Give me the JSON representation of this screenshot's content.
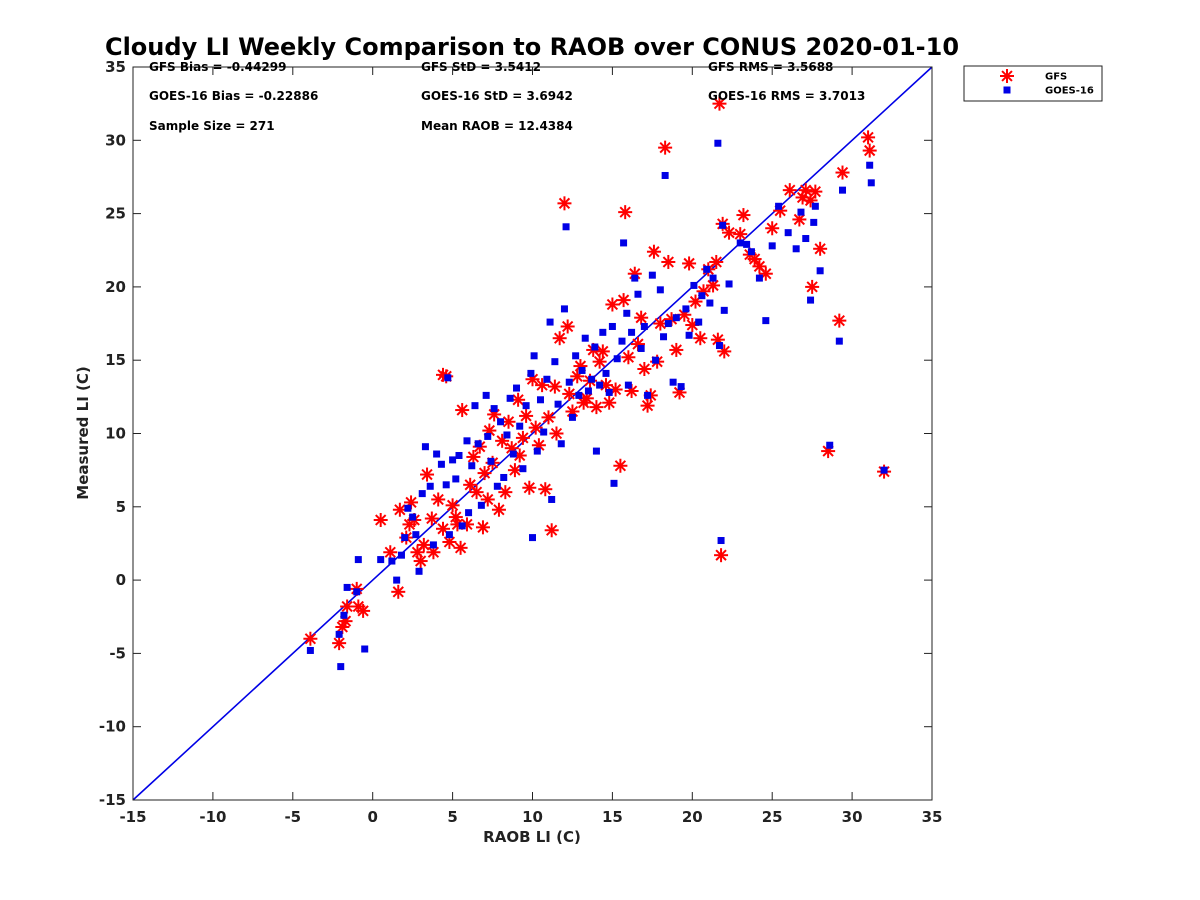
{
  "chart_data": {
    "type": "scatter",
    "title": "Cloudy LI Weekly Comparison to RAOB over CONUS 2020-01-10",
    "xlabel": "RAOB LI (C)",
    "ylabel": "Measured LI (C)",
    "xlim": [
      -15,
      35
    ],
    "ylim": [
      -15,
      35
    ],
    "xticks": [
      "-15",
      "-10",
      "-5",
      "0",
      "5",
      "10",
      "15",
      "20",
      "25",
      "30",
      "35"
    ],
    "yticks": [
      "-15",
      "-10",
      "-5",
      "0",
      "5",
      "10",
      "15",
      "20",
      "25",
      "30",
      "35"
    ],
    "grid": false,
    "legend_position": "outside-top-right",
    "reference_line": {
      "from": [
        -15,
        -15
      ],
      "to": [
        35,
        35
      ],
      "color": "#0000e6"
    },
    "stats": [
      [
        "GFS Bias = -0.44299",
        "GFS StD = 3.5412",
        "GFS RMS = 3.5688"
      ],
      [
        "GOES-16 Bias = -0.22886",
        "GOES-16 StD = 3.6942",
        "GOES-16 RMS = 3.7013"
      ],
      [
        "Sample Size = 271",
        "Mean RAOB = 12.4384",
        ""
      ]
    ],
    "series": [
      {
        "name": "GFS",
        "marker": "asterisk",
        "color": "#ff0000",
        "points": [
          [
            -3.9,
            -4.0
          ],
          [
            -2.1,
            -4.3
          ],
          [
            -1.9,
            -3.2
          ],
          [
            -1.7,
            -2.8
          ],
          [
            -1.6,
            -1.8
          ],
          [
            -1.0,
            -0.6
          ],
          [
            -0.9,
            -1.8
          ],
          [
            -0.6,
            -2.1
          ],
          [
            0.5,
            4.1
          ],
          [
            1.1,
            1.9
          ],
          [
            1.6,
            -0.8
          ],
          [
            1.7,
            4.8
          ],
          [
            2.1,
            2.9
          ],
          [
            2.3,
            3.8
          ],
          [
            2.4,
            5.3
          ],
          [
            2.6,
            4.1
          ],
          [
            2.8,
            1.9
          ],
          [
            3.0,
            1.3
          ],
          [
            3.2,
            2.4
          ],
          [
            3.4,
            7.2
          ],
          [
            3.7,
            4.2
          ],
          [
            3.8,
            1.9
          ],
          [
            4.1,
            5.5
          ],
          [
            4.4,
            3.5
          ],
          [
            4.4,
            14.0
          ],
          [
            4.6,
            13.9
          ],
          [
            4.8,
            2.6
          ],
          [
            5.0,
            5.1
          ],
          [
            5.2,
            4.3
          ],
          [
            5.3,
            3.8
          ],
          [
            5.5,
            2.2
          ],
          [
            5.6,
            11.6
          ],
          [
            5.9,
            3.8
          ],
          [
            6.1,
            6.5
          ],
          [
            6.3,
            8.4
          ],
          [
            6.5,
            6.0
          ],
          [
            6.7,
            9.1
          ],
          [
            6.9,
            3.6
          ],
          [
            7.0,
            7.3
          ],
          [
            7.2,
            5.5
          ],
          [
            7.3,
            10.2
          ],
          [
            7.5,
            8.0
          ],
          [
            7.6,
            11.3
          ],
          [
            7.9,
            4.8
          ],
          [
            8.1,
            9.5
          ],
          [
            8.3,
            6.0
          ],
          [
            8.5,
            10.8
          ],
          [
            8.7,
            9.0
          ],
          [
            8.9,
            7.5
          ],
          [
            9.1,
            12.3
          ],
          [
            9.2,
            8.5
          ],
          [
            9.4,
            9.7
          ],
          [
            9.6,
            11.2
          ],
          [
            9.8,
            6.3
          ],
          [
            10.0,
            13.7
          ],
          [
            10.2,
            10.4
          ],
          [
            10.4,
            9.2
          ],
          [
            10.6,
            13.3
          ],
          [
            10.8,
            6.2
          ],
          [
            11.0,
            11.1
          ],
          [
            11.2,
            3.4
          ],
          [
            11.4,
            13.2
          ],
          [
            11.5,
            10.0
          ],
          [
            11.7,
            16.5
          ],
          [
            12.0,
            25.7
          ],
          [
            12.2,
            17.3
          ],
          [
            12.3,
            12.7
          ],
          [
            12.5,
            11.5
          ],
          [
            12.8,
            13.9
          ],
          [
            13.0,
            14.6
          ],
          [
            13.2,
            12.1
          ],
          [
            13.4,
            12.4
          ],
          [
            13.6,
            13.6
          ],
          [
            13.8,
            15.7
          ],
          [
            14.0,
            11.8
          ],
          [
            14.2,
            14.9
          ],
          [
            14.4,
            15.6
          ],
          [
            14.6,
            13.3
          ],
          [
            14.8,
            12.1
          ],
          [
            15.0,
            18.8
          ],
          [
            15.2,
            13.0
          ],
          [
            15.5,
            7.8
          ],
          [
            15.7,
            19.1
          ],
          [
            15.8,
            25.1
          ],
          [
            16.0,
            15.2
          ],
          [
            16.2,
            12.9
          ],
          [
            16.4,
            20.9
          ],
          [
            16.6,
            16.1
          ],
          [
            16.8,
            17.9
          ],
          [
            17.0,
            14.4
          ],
          [
            17.2,
            11.9
          ],
          [
            17.4,
            12.6
          ],
          [
            17.6,
            22.4
          ],
          [
            17.8,
            14.9
          ],
          [
            18.0,
            17.5
          ],
          [
            18.3,
            29.5
          ],
          [
            18.5,
            21.7
          ],
          [
            18.7,
            17.8
          ],
          [
            19.0,
            15.7
          ],
          [
            19.2,
            12.8
          ],
          [
            19.5,
            18.1
          ],
          [
            19.8,
            21.6
          ],
          [
            20.0,
            17.4
          ],
          [
            20.2,
            19.0
          ],
          [
            20.5,
            16.5
          ],
          [
            20.7,
            19.7
          ],
          [
            21.0,
            21.2
          ],
          [
            21.3,
            20.1
          ],
          [
            21.5,
            21.7
          ],
          [
            21.6,
            16.4
          ],
          [
            21.7,
            32.5
          ],
          [
            21.8,
            1.7
          ],
          [
            21.9,
            24.3
          ],
          [
            22.0,
            15.6
          ],
          [
            22.3,
            23.7
          ],
          [
            23.0,
            23.6
          ],
          [
            23.2,
            24.9
          ],
          [
            23.6,
            22.2
          ],
          [
            23.9,
            21.9
          ],
          [
            24.2,
            21.4
          ],
          [
            24.6,
            20.9
          ],
          [
            25.0,
            24.0
          ],
          [
            25.5,
            25.2
          ],
          [
            26.1,
            26.6
          ],
          [
            26.7,
            24.6
          ],
          [
            26.9,
            26.1
          ],
          [
            27.1,
            26.6
          ],
          [
            27.4,
            25.9
          ],
          [
            27.7,
            26.5
          ],
          [
            27.5,
            20.0
          ],
          [
            28.0,
            22.6
          ],
          [
            28.5,
            8.8
          ],
          [
            29.2,
            17.7
          ],
          [
            29.4,
            27.8
          ],
          [
            31.0,
            30.2
          ],
          [
            31.1,
            29.3
          ],
          [
            32.0,
            7.4
          ]
        ]
      },
      {
        "name": "GOES-16",
        "marker": "square",
        "color": "#0000e6",
        "points": [
          [
            -3.9,
            -4.8
          ],
          [
            -2.1,
            -3.7
          ],
          [
            -2.0,
            -5.9
          ],
          [
            -1.8,
            -2.4
          ],
          [
            -1.6,
            -0.5
          ],
          [
            -1.0,
            -0.8
          ],
          [
            -0.9,
            1.4
          ],
          [
            -0.5,
            -4.7
          ],
          [
            0.5,
            1.4
          ],
          [
            1.2,
            1.3
          ],
          [
            1.5,
            0.0
          ],
          [
            1.8,
            1.7
          ],
          [
            2.0,
            2.9
          ],
          [
            2.2,
            4.9
          ],
          [
            2.5,
            4.3
          ],
          [
            2.7,
            3.1
          ],
          [
            2.9,
            0.6
          ],
          [
            3.1,
            5.9
          ],
          [
            3.3,
            9.1
          ],
          [
            3.6,
            6.4
          ],
          [
            3.8,
            2.4
          ],
          [
            4.0,
            8.6
          ],
          [
            4.3,
            7.9
          ],
          [
            4.6,
            6.5
          ],
          [
            4.7,
            13.8
          ],
          [
            4.8,
            3.1
          ],
          [
            5.0,
            8.2
          ],
          [
            5.2,
            6.9
          ],
          [
            5.4,
            8.5
          ],
          [
            5.6,
            3.7
          ],
          [
            5.9,
            9.5
          ],
          [
            6.0,
            4.6
          ],
          [
            6.2,
            7.8
          ],
          [
            6.4,
            11.9
          ],
          [
            6.6,
            9.3
          ],
          [
            6.8,
            5.1
          ],
          [
            7.1,
            12.6
          ],
          [
            7.2,
            9.8
          ],
          [
            7.4,
            8.1
          ],
          [
            7.6,
            11.7
          ],
          [
            7.8,
            6.4
          ],
          [
            8.0,
            10.8
          ],
          [
            8.2,
            7.0
          ],
          [
            8.4,
            9.9
          ],
          [
            8.6,
            12.4
          ],
          [
            8.8,
            8.6
          ],
          [
            9.0,
            13.1
          ],
          [
            9.2,
            10.5
          ],
          [
            9.4,
            7.6
          ],
          [
            9.6,
            11.9
          ],
          [
            9.9,
            14.1
          ],
          [
            10.0,
            2.9
          ],
          [
            10.1,
            15.3
          ],
          [
            10.3,
            8.8
          ],
          [
            10.5,
            12.3
          ],
          [
            10.7,
            10.1
          ],
          [
            10.9,
            13.7
          ],
          [
            11.1,
            17.6
          ],
          [
            11.2,
            5.5
          ],
          [
            11.4,
            14.9
          ],
          [
            11.6,
            12.0
          ],
          [
            11.8,
            9.3
          ],
          [
            12.0,
            18.5
          ],
          [
            12.1,
            24.1
          ],
          [
            12.3,
            13.5
          ],
          [
            12.5,
            11.1
          ],
          [
            12.7,
            15.3
          ],
          [
            12.9,
            12.6
          ],
          [
            13.1,
            14.3
          ],
          [
            13.3,
            16.5
          ],
          [
            13.5,
            12.9
          ],
          [
            13.7,
            13.7
          ],
          [
            13.9,
            15.9
          ],
          [
            14.0,
            8.8
          ],
          [
            14.2,
            13.3
          ],
          [
            14.4,
            16.9
          ],
          [
            14.6,
            14.1
          ],
          [
            14.8,
            12.8
          ],
          [
            15.0,
            17.3
          ],
          [
            15.1,
            6.6
          ],
          [
            15.3,
            15.1
          ],
          [
            15.6,
            16.3
          ],
          [
            15.7,
            23.0
          ],
          [
            15.9,
            18.2
          ],
          [
            16.0,
            13.3
          ],
          [
            16.2,
            16.9
          ],
          [
            16.4,
            20.6
          ],
          [
            16.6,
            19.5
          ],
          [
            16.8,
            15.8
          ],
          [
            17.0,
            17.3
          ],
          [
            17.2,
            12.6
          ],
          [
            17.5,
            20.8
          ],
          [
            17.7,
            15.0
          ],
          [
            18.0,
            19.8
          ],
          [
            18.2,
            16.6
          ],
          [
            18.3,
            27.6
          ],
          [
            18.5,
            17.5
          ],
          [
            18.8,
            13.5
          ],
          [
            19.0,
            17.9
          ],
          [
            19.3,
            13.2
          ],
          [
            19.6,
            18.5
          ],
          [
            19.8,
            16.7
          ],
          [
            20.1,
            20.1
          ],
          [
            20.4,
            17.6
          ],
          [
            20.6,
            19.4
          ],
          [
            20.9,
            21.2
          ],
          [
            21.1,
            18.9
          ],
          [
            21.3,
            20.6
          ],
          [
            21.6,
            29.8
          ],
          [
            21.7,
            16.0
          ],
          [
            21.8,
            2.7
          ],
          [
            21.9,
            24.2
          ],
          [
            22.0,
            18.4
          ],
          [
            22.3,
            20.2
          ],
          [
            23.0,
            23.0
          ],
          [
            23.4,
            22.9
          ],
          [
            23.7,
            22.4
          ],
          [
            24.2,
            20.6
          ],
          [
            24.6,
            17.7
          ],
          [
            25.0,
            22.8
          ],
          [
            25.4,
            25.5
          ],
          [
            26.0,
            23.7
          ],
          [
            26.5,
            22.6
          ],
          [
            26.8,
            25.1
          ],
          [
            27.1,
            23.3
          ],
          [
            27.4,
            19.1
          ],
          [
            27.6,
            24.4
          ],
          [
            27.7,
            25.5
          ],
          [
            28.0,
            21.1
          ],
          [
            28.6,
            9.2
          ],
          [
            29.2,
            16.3
          ],
          [
            29.4,
            26.6
          ],
          [
            31.1,
            28.3
          ],
          [
            31.2,
            27.1
          ],
          [
            32.0,
            7.5
          ]
        ]
      }
    ]
  }
}
